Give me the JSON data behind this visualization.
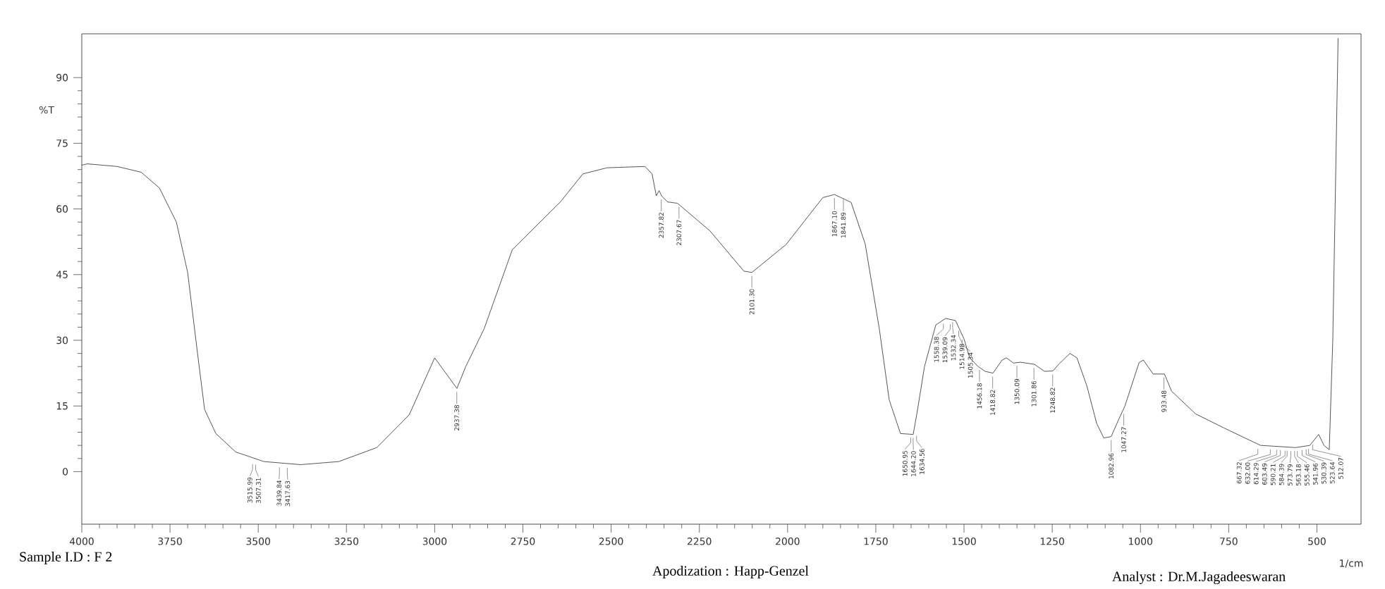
{
  "chart_data": {
    "type": "line",
    "xlabel": "1/cm",
    "ylabel": "%T",
    "xlim": [
      4000,
      375
    ],
    "ylim": [
      -12,
      100
    ],
    "xticks": [
      4000,
      3750,
      3500,
      3250,
      3000,
      2750,
      2500,
      2250,
      2000,
      1750,
      1500,
      1250,
      1000,
      750,
      500
    ],
    "yticks": [
      0,
      15,
      30,
      45,
      60,
      75,
      90
    ],
    "grid": false,
    "marker": "none",
    "line_style": "solid",
    "series": [
      {
        "color": "#555555",
        "x": [
          4000,
          3984,
          3900,
          3832,
          3780,
          3732,
          3700,
          3672,
          3652,
          3620,
          3564,
          3484,
          3380,
          3272,
          3164,
          3072,
          3000,
          2937,
          2912,
          2860,
          2780,
          2644,
          2580,
          2512,
          2404,
          2384,
          2372,
          2364,
          2357,
          2340,
          2312,
          2220,
          2124,
          2101,
          2004,
          1900,
          1867,
          1820,
          1780,
          1740,
          1712,
          1680,
          1644,
          1632,
          1612,
          1580,
          1552,
          1524,
          1500,
          1484,
          1460,
          1440,
          1418,
          1392,
          1380,
          1360,
          1340,
          1300,
          1272,
          1248,
          1232,
          1200,
          1180,
          1152,
          1124,
          1104,
          1083,
          1064,
          1044,
          1004,
          992,
          964,
          932,
          912,
          844,
          764,
          660,
          560,
          520,
          495,
          480,
          465,
          455,
          440
        ],
        "values": [
          70,
          70.3,
          69.7,
          68.4,
          64.8,
          57,
          45.5,
          27,
          14.2,
          8.7,
          4.5,
          2.3,
          1.6,
          2.3,
          5.5,
          13,
          26,
          19,
          24,
          32.6,
          50.7,
          61.6,
          68,
          69.4,
          69.7,
          68,
          63,
          64.2,
          63,
          61.6,
          61.3,
          55,
          45.8,
          45.5,
          51.9,
          62.6,
          63.3,
          61.5,
          52,
          32.6,
          16.4,
          8.7,
          8.5,
          14,
          24,
          33.5,
          35,
          34.5,
          30.3,
          26,
          24,
          22.9,
          22.5,
          25.5,
          26,
          24.8,
          25,
          24.5,
          22.9,
          23,
          24.5,
          27,
          26,
          19.6,
          11,
          7.7,
          8,
          11.5,
          15,
          24.9,
          25.5,
          22.3,
          22.3,
          18.4,
          13.2,
          10,
          6,
          5.5,
          6,
          8.5,
          6,
          5,
          30,
          99
        ]
      }
    ],
    "annotations": [
      "Sample I.D : F 2",
      "Apodization   : Happ-Genzel",
      "Analyst : Dr.M.Jagadeeswaran",
      {
        "text": "3515.99",
        "x": 3515.99,
        "y": 2.5
      },
      {
        "text": "3507.31",
        "x": 3507.31,
        "y": 2.4
      },
      {
        "text": "3439.84",
        "x": 3439.84,
        "y": 1.8
      },
      {
        "text": "3417.63",
        "x": 3417.63,
        "y": 1.7
      },
      {
        "text": "2937.38",
        "x": 2937.38,
        "y": 19
      },
      {
        "text": "2357.82",
        "x": 2357.82,
        "y": 63
      },
      {
        "text": "2307.67",
        "x": 2307.67,
        "y": 61.3
      },
      {
        "text": "2101.30",
        "x": 2101.3,
        "y": 45.5
      },
      {
        "text": "1867.10",
        "x": 1867.1,
        "y": 63.3
      },
      {
        "text": "1841.89",
        "x": 1841.89,
        "y": 63
      },
      {
        "text": "1650.95",
        "x": 1650.95,
        "y": 8.6
      },
      {
        "text": "1644.20",
        "x": 1644.2,
        "y": 8.5
      },
      {
        "text": "1634.56",
        "x": 1634.56,
        "y": 9
      },
      {
        "text": "1558.38",
        "x": 1558.38,
        "y": 34.6
      },
      {
        "text": "1539.09",
        "x": 1539.09,
        "y": 34.5
      },
      {
        "text": "1532.34",
        "x": 1532.34,
        "y": 35
      },
      {
        "text": "1514.98",
        "x": 1514.98,
        "y": 33
      },
      {
        "text": "1505.34",
        "x": 1505.34,
        "y": 31
      },
      {
        "text": "1456.18",
        "x": 1456.18,
        "y": 24
      },
      {
        "text": "1418.82",
        "x": 1418.82,
        "y": 22.5
      },
      {
        "text": "1350.09",
        "x": 1350.09,
        "y": 25
      },
      {
        "text": "1301.86",
        "x": 1301.86,
        "y": 24.5
      },
      {
        "text": "1248.82",
        "x": 1248.82,
        "y": 23
      },
      {
        "text": "1082.96",
        "x": 1082.96,
        "y": 8
      },
      {
        "text": "1047.27",
        "x": 1047.27,
        "y": 14
      },
      {
        "text": "933.48",
        "x": 933.48,
        "y": 22.3
      },
      {
        "text": "667.32",
        "x": 667.32,
        "y": 6
      },
      {
        "text": "632.00",
        "x": 632.0,
        "y": 5.9
      },
      {
        "text": "614.29",
        "x": 614.29,
        "y": 5.8
      },
      {
        "text": "603.49",
        "x": 603.49,
        "y": 5.7
      },
      {
        "text": "590.21",
        "x": 590.21,
        "y": 5.6
      },
      {
        "text": "584.39",
        "x": 584.39,
        "y": 5.6
      },
      {
        "text": "573.79",
        "x": 573.79,
        "y": 5.5
      },
      {
        "text": "563.18",
        "x": 563.18,
        "y": 5.5
      },
      {
        "text": "555.46",
        "x": 555.46,
        "y": 5.5
      },
      {
        "text": "541.96",
        "x": 541.96,
        "y": 5.7
      },
      {
        "text": "530.39",
        "x": 530.39,
        "y": 5.9
      },
      {
        "text": "523.64",
        "x": 523.64,
        "y": 6
      },
      {
        "text": "512.07",
        "x": 512.07,
        "y": 7
      }
    ]
  }
}
